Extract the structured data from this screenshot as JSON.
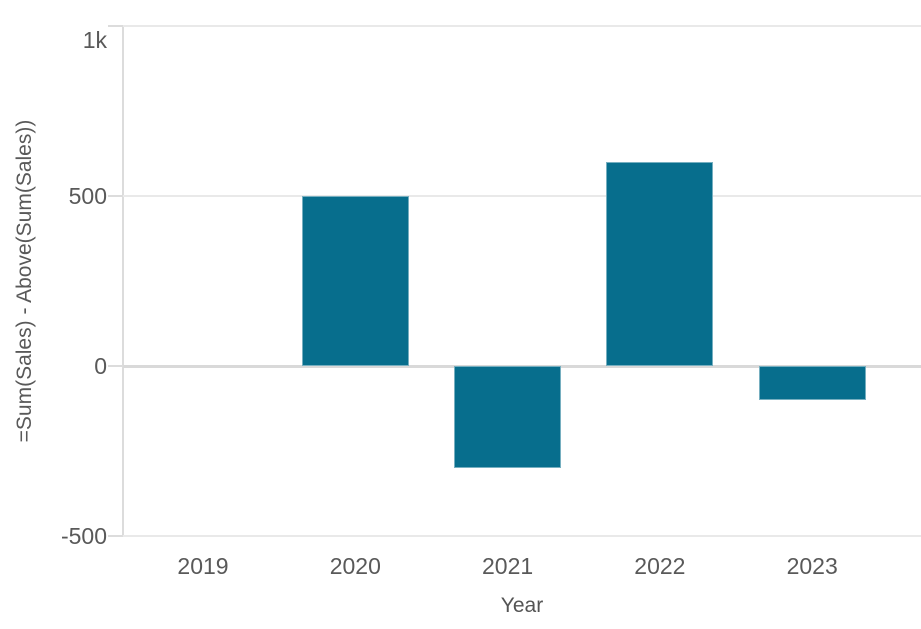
{
  "chart_data": {
    "type": "bar",
    "title": "",
    "categories": [
      "2019",
      "2020",
      "2021",
      "2022",
      "2023"
    ],
    "values": [
      0,
      500,
      -300,
      600,
      -100
    ],
    "xlabel": "Year",
    "ylabel": "=Sum(Sales) - Above(Sum(Sales))",
    "ylim": [
      -500,
      1000
    ],
    "yticks": [
      {
        "value": 1000,
        "label": "1k"
      },
      {
        "value": 500,
        "label": "500"
      },
      {
        "value": 0,
        "label": "0"
      },
      {
        "value": -500,
        "label": "-500"
      }
    ],
    "grid": true,
    "legend": "none",
    "colors": {
      "bar": "#076e8d",
      "gridline": "#e9e9e9",
      "zero_line": "#d9d9d9",
      "axis_line": "#dcdcdc",
      "text": "#595959"
    }
  }
}
